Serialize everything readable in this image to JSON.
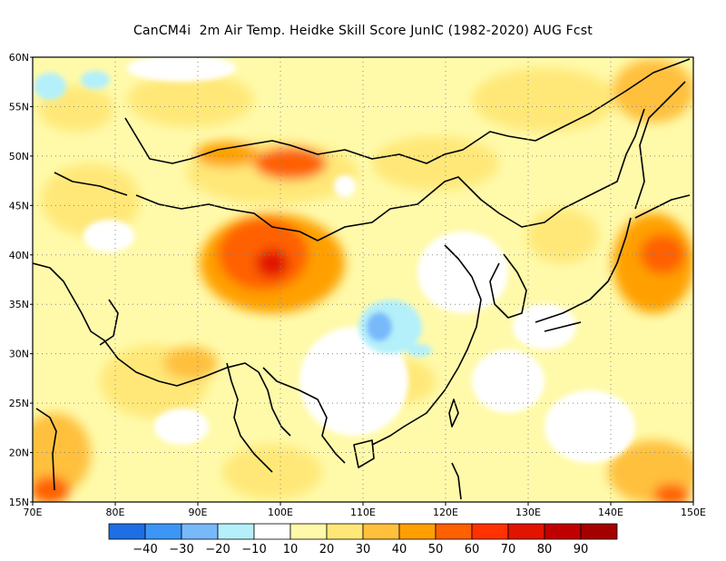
{
  "title": "CanCM4i  2m Air Temp. Heidke Skill Score JunIC (1982-2020) AUG Fcst",
  "map": {
    "lon_range": [
      70,
      150
    ],
    "lat_range": [
      15,
      60
    ],
    "lon_ticks": [
      "70E",
      "80E",
      "90E",
      "100E",
      "110E",
      "120E",
      "130E",
      "140E",
      "150E"
    ],
    "lat_ticks": [
      "15N",
      "20N",
      "25N",
      "30N",
      "35N",
      "40N",
      "45N",
      "50N",
      "55N",
      "60N"
    ],
    "grid": "dotted",
    "hotspots": [
      {
        "lon": 99,
        "lat": 39,
        "score": 65
      },
      {
        "lon": 96,
        "lat": 41,
        "score": 50
      },
      {
        "lon": 103,
        "lat": 50,
        "score": 55
      },
      {
        "lon": 96,
        "lat": 51,
        "score": 45
      },
      {
        "lon": 91,
        "lat": 50,
        "score": 35
      },
      {
        "lon": 145,
        "lat": 40,
        "score": 45
      },
      {
        "lon": 143,
        "lat": 56,
        "score": 35
      },
      {
        "lon": 92,
        "lat": 26,
        "score": 35
      },
      {
        "lon": 72,
        "lat": 18,
        "score": 40
      },
      {
        "lon": 146,
        "lat": 18,
        "score": 40
      },
      {
        "lon": 112,
        "lat": 29,
        "score": 30
      },
      {
        "lon": 83,
        "lat": 47,
        "score": 30
      },
      {
        "lon": 125,
        "lat": 48,
        "score": 30
      },
      {
        "lon": 132,
        "lat": 58,
        "score": 25
      }
    ],
    "coldspots": [
      {
        "lon": 112,
        "lat": 33,
        "score": -25
      },
      {
        "lon": 116,
        "lat": 30,
        "score": -15
      },
      {
        "lon": 76,
        "lat": 58,
        "score": -15
      }
    ]
  },
  "colorbar": {
    "colors": [
      "#1e6ee6",
      "#3c96f5",
      "#78b9fa",
      "#b4f0fa",
      "#ffffff",
      "#fffaaa",
      "#ffe878",
      "#ffc03c",
      "#ffa000",
      "#ff6000",
      "#ff3200",
      "#e11400",
      "#c00000",
      "#a50000"
    ],
    "labels": [
      "-40",
      "-30",
      "-20",
      "-10",
      "10",
      "20",
      "30",
      "40",
      "50",
      "60",
      "70",
      "80",
      "90"
    ]
  }
}
